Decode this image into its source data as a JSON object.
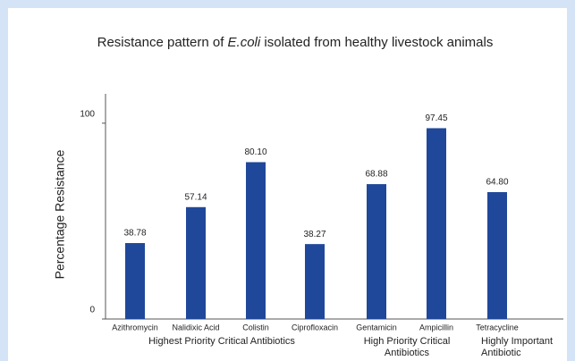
{
  "chart_data": {
    "type": "bar",
    "title_parts": [
      "Resistance pattern of ",
      "E.coli",
      " isolated from healthy livestock animals"
    ],
    "ylabel": "Percentage Resistance",
    "categories": [
      "Azithromycin",
      "Nalidixic Acid",
      "Colistin",
      "Ciprofloxacin",
      "Gentamicin",
      "Ampicillin",
      "Tetracycline"
    ],
    "values": [
      38.78,
      57.14,
      80.1,
      38.27,
      68.88,
      97.45,
      64.8
    ],
    "value_labels": [
      "38.78",
      "57.14",
      "80.10",
      "38.27",
      "68.88",
      "97.45",
      "64.80"
    ],
    "groups": [
      {
        "lines": [
          "Highest Priority Critical  Antibiotics"
        ]
      },
      {
        "lines": [
          "High Priority Critical",
          "Antibiotics"
        ]
      },
      {
        "lines": [
          "Highly Important",
          "Antibiotic"
        ]
      }
    ],
    "color": "#20489a",
    "ylim": [
      0,
      115
    ],
    "yticks": [
      0,
      100
    ]
  }
}
